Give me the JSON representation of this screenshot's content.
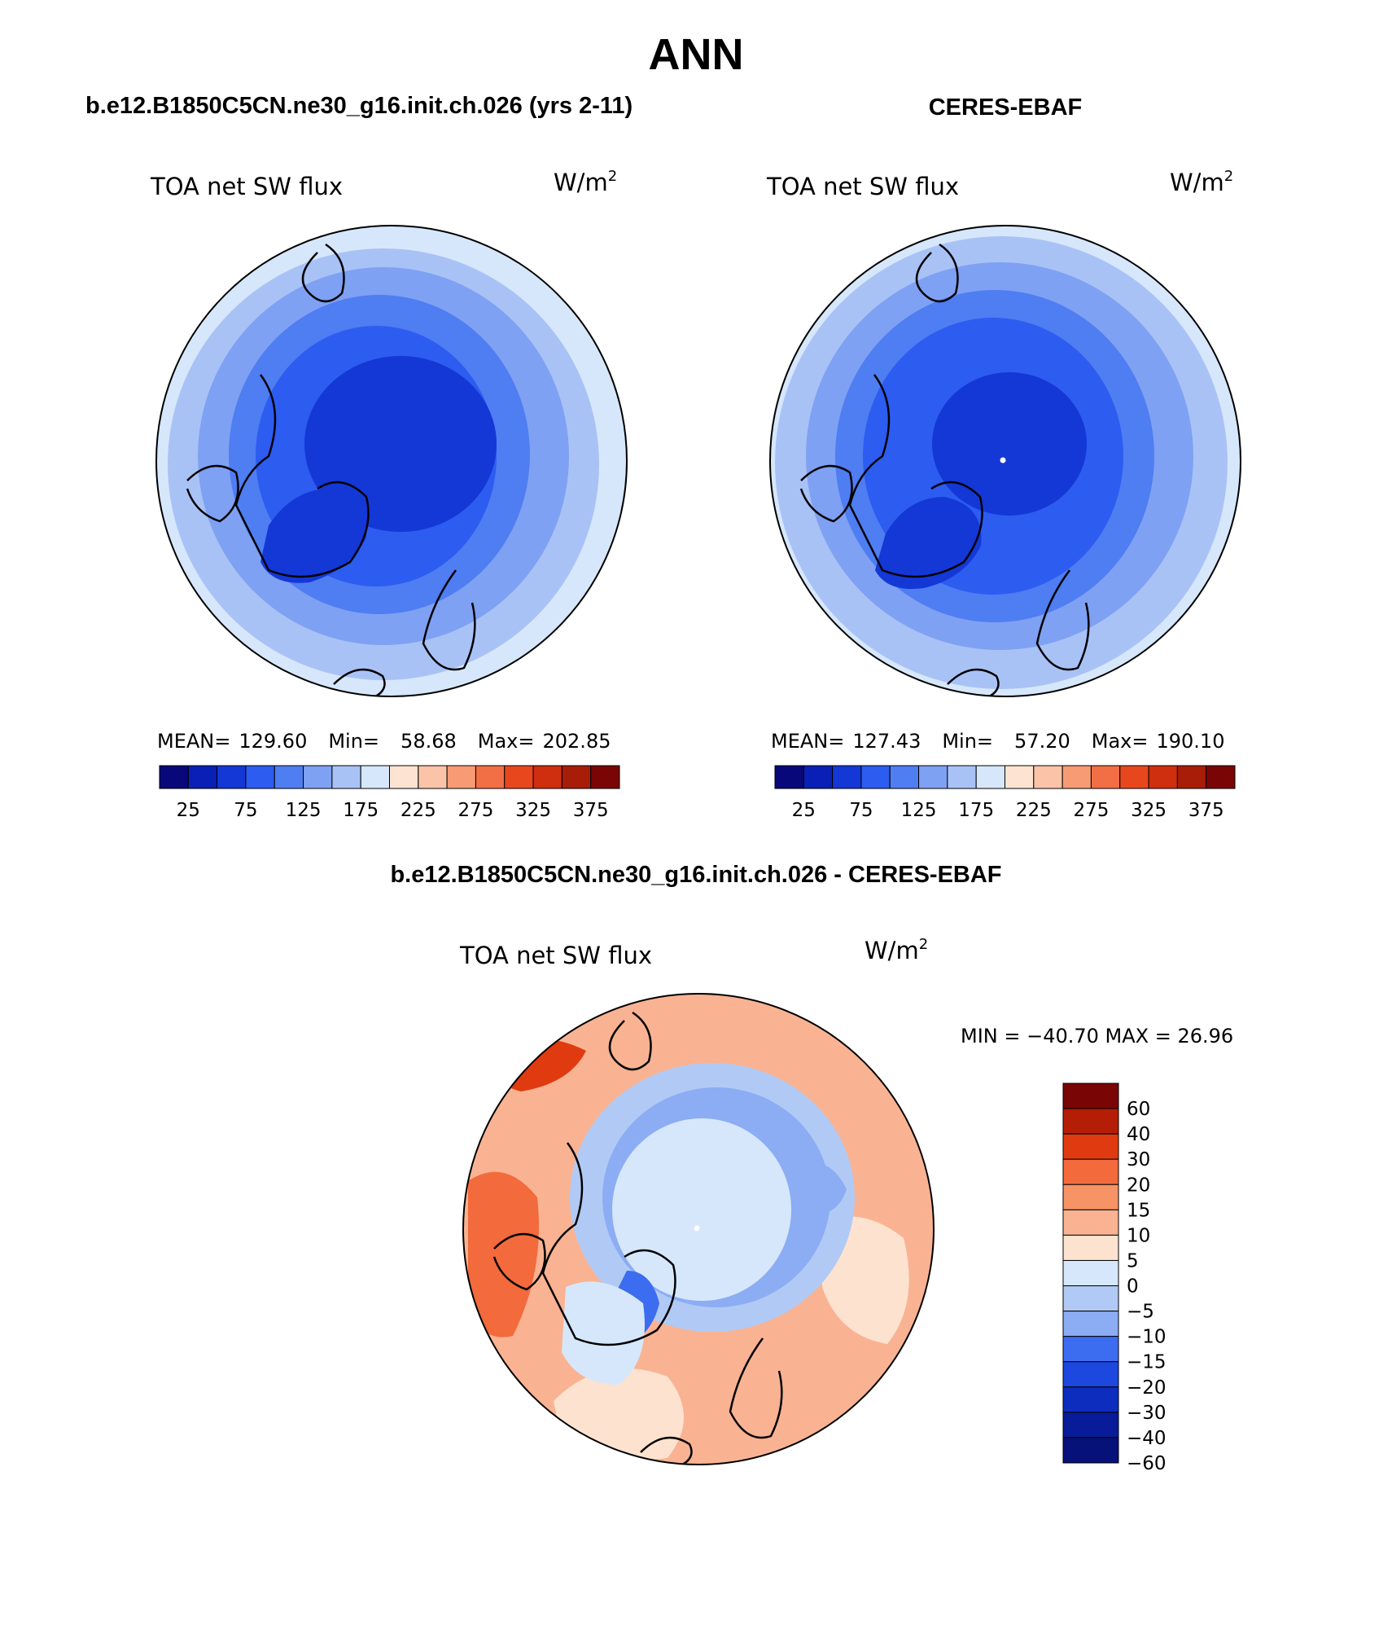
{
  "main_title": "ANN",
  "panels": [
    {
      "id": "model",
      "case_title": "b.e12.B1850C5CN.ne30_g16.init.ch.026 (yrs 2-11)",
      "variable": "TOA net SW flux",
      "units": "W/m",
      "units_sup": "2",
      "stats": {
        "mean_label": "MEAN=",
        "mean": "129.60",
        "min_label": "Min=",
        "min": "58.68",
        "max_label": "Max=",
        "max": "202.85"
      }
    },
    {
      "id": "obs",
      "case_title": "CERES-EBAF",
      "variable": "TOA net SW flux",
      "units": "W/m",
      "units_sup": "2",
      "stats": {
        "mean_label": "MEAN=",
        "mean": "127.43",
        "min_label": "Min=",
        "min": "57.20",
        "max_label": "Max=",
        "max": "190.10"
      }
    }
  ],
  "abs_colorbar": {
    "colors": [
      "#08087a",
      "#0a1fb5",
      "#1438d6",
      "#2d5cf0",
      "#4f7df2",
      "#7fa1f3",
      "#a9c2f6",
      "#d6e7fb",
      "#fde4d2",
      "#fbc3a8",
      "#f79b75",
      "#f26e45",
      "#e8471e",
      "#cf2f0f",
      "#a81d08",
      "#7a0505"
    ],
    "labels": [
      "25",
      "75",
      "125",
      "175",
      "225",
      "275",
      "325",
      "375"
    ]
  },
  "diff_panel": {
    "case_title": "b.e12.B1850C5CN.ne30_g16.init.ch.026 - CERES-EBAF",
    "variable": "TOA net SW flux",
    "units": "W/m",
    "units_sup": "2",
    "minmax": "MIN = −40.70 MAX =   26.96"
  },
  "diff_colorbar": {
    "colors": [
      "#7a0505",
      "#b51e06",
      "#e03b10",
      "#f36a3c",
      "#f69466",
      "#f9b392",
      "#fde2cf",
      "#d6e7fb",
      "#b1caf5",
      "#8cacf4",
      "#3c6cf0",
      "#1c48e0",
      "#0d2dbf",
      "#081c99",
      "#07117a"
    ],
    "labels": [
      "60",
      "40",
      "30",
      "20",
      "15",
      "10",
      "5",
      "0",
      "−5",
      "−10",
      "−15",
      "−20",
      "−30",
      "−40",
      "−60"
    ]
  },
  "map_colors": {
    "abs": [
      "#0a1fb5",
      "#1438d6",
      "#2d5cf0",
      "#4f7df2",
      "#7fa1f3",
      "#a9c2f6",
      "#d6e7fb"
    ],
    "diff": [
      "#d6e7fb",
      "#b1caf5",
      "#8cacf4",
      "#3c6cf0",
      "#fde2cf",
      "#f9b392",
      "#f69466",
      "#f36a3c",
      "#e03b10"
    ]
  }
}
